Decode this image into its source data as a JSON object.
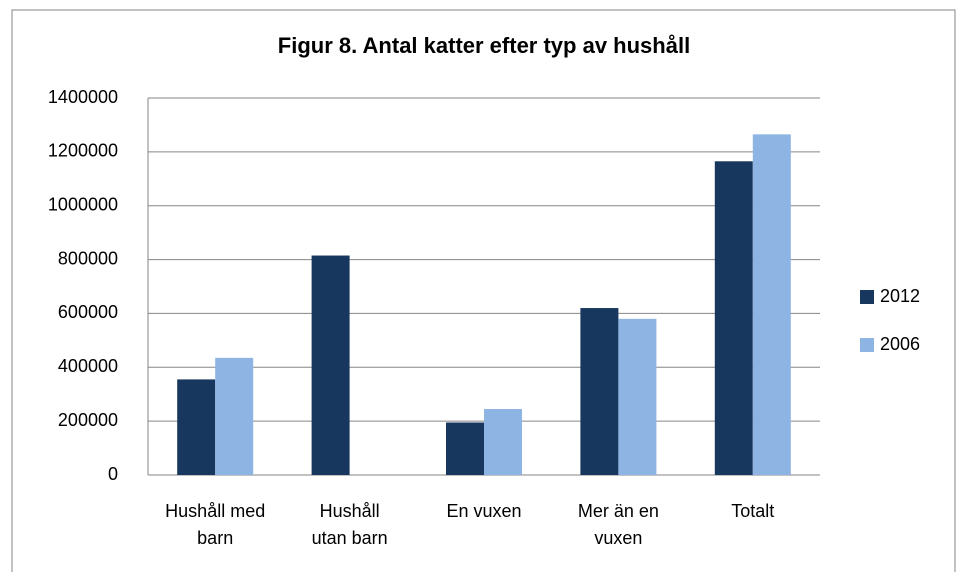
{
  "chart_data": {
    "type": "bar",
    "title": "Figur 8. Antal katter efter typ av hushåll",
    "categories": [
      [
        "Hushåll med",
        "barn"
      ],
      [
        "Hushåll",
        "utan barn"
      ],
      [
        "En vuxen"
      ],
      [
        "Mer än en",
        "vuxen"
      ],
      [
        "Totalt"
      ]
    ],
    "series": [
      {
        "name": "2012",
        "color": "#17375e",
        "values": [
          355000,
          815000,
          195000,
          620000,
          1165000
        ]
      },
      {
        "name": "2006",
        "color": "#8eb4e3",
        "values": [
          435000,
          null,
          245000,
          580000,
          1265000
        ]
      }
    ],
    "ylim": [
      0,
      1400000
    ],
    "yticks": [
      0,
      200000,
      400000,
      600000,
      800000,
      1000000,
      1200000,
      1400000
    ],
    "grid": true,
    "legend": "right"
  }
}
